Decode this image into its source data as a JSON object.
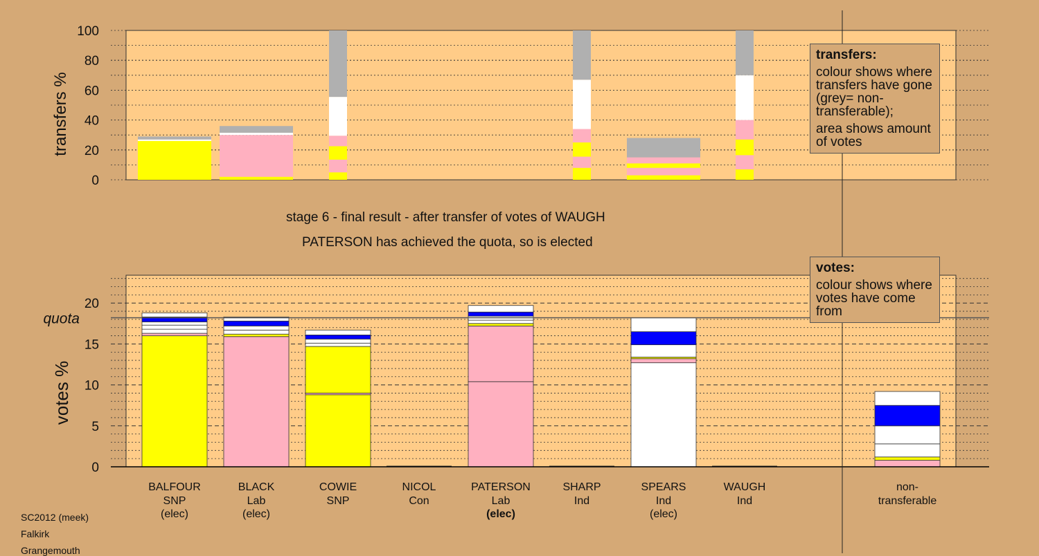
{
  "colors": {
    "SNP": "#ffff00",
    "Lab": "#ffb0c0",
    "Ind": "#ffffff",
    "Con": "#0000ff",
    "nontransferable": "#b0b0b0",
    "panel": "#ffcc88",
    "background": "#d5a976"
  },
  "captions": {
    "stage": "stage 6 - final result - after transfer of votes of WAUGH",
    "elected": "PATERSON has achieved the quota, so is elected"
  },
  "legend_transfers": {
    "title": "transfers:",
    "p1": "colour shows where transfers have gone (grey= non-transferable);",
    "p2": "area shows amount of votes"
  },
  "legend_votes": {
    "title": "votes:",
    "p1": "colour shows where votes have come from"
  },
  "footer": [
    "SC2012 (meek)",
    "Falkirk",
    "Grangemouth"
  ],
  "chart_data": [
    {
      "type": "bar",
      "title": "",
      "ylabel": "transfers %",
      "ylim": [
        0,
        100
      ],
      "yticks": [
        0,
        20,
        40,
        60,
        80,
        100
      ],
      "grid": true,
      "legend": "right",
      "columns": [
        {
          "id": "BALFOUR",
          "segments": [
            {
              "c": "SNP",
              "v": 26
            },
            {
              "c": "Ind",
              "v": 1
            },
            {
              "c": "nontransferable",
              "v": 2
            }
          ]
        },
        {
          "id": "BLACK",
          "segments": [
            {
              "c": "SNP",
              "v": 2
            },
            {
              "c": "Lab",
              "v": 28
            },
            {
              "c": "Ind",
              "v": 1.5
            },
            {
              "c": "nontransferable",
              "v": 4.5
            }
          ]
        },
        {
          "id": "COWIE",
          "narrow": true,
          "segments": [
            {
              "c": "SNP",
              "v": 5
            },
            {
              "c": "Lab",
              "v": 8.5
            },
            {
              "c": "SNP",
              "v": 9
            },
            {
              "c": "Lab",
              "v": 7
            },
            {
              "c": "Ind",
              "v": 26
            },
            {
              "c": "nontransferable",
              "v": 44.5
            }
          ]
        },
        {
          "id": "NICOL",
          "segments": []
        },
        {
          "id": "PATERSON",
          "segments": []
        },
        {
          "id": "SHARP",
          "narrow": true,
          "segments": [
            {
              "c": "SNP",
              "v": 8
            },
            {
              "c": "Lab",
              "v": 7.5
            },
            {
              "c": "SNP",
              "v": 9.5
            },
            {
              "c": "Lab",
              "v": 9
            },
            {
              "c": "Ind",
              "v": 33
            },
            {
              "c": "nontransferable",
              "v": 33
            }
          ]
        },
        {
          "id": "SPEARS",
          "segments": [
            {
              "c": "SNP",
              "v": 3
            },
            {
              "c": "Lab",
              "v": 5
            },
            {
              "c": "SNP",
              "v": 3
            },
            {
              "c": "Lab",
              "v": 4
            },
            {
              "c": "nontransferable",
              "v": 13
            }
          ]
        },
        {
          "id": "WAUGH",
          "narrow": true,
          "segments": [
            {
              "c": "SNP",
              "v": 7
            },
            {
              "c": "Lab",
              "v": 9.5
            },
            {
              "c": "SNP",
              "v": 10.5
            },
            {
              "c": "Lab",
              "v": 13
            },
            {
              "c": "Ind",
              "v": 30
            },
            {
              "c": "nontransferable",
              "v": 30
            }
          ]
        }
      ]
    },
    {
      "type": "bar",
      "title": "",
      "ylabel": "votes %",
      "ylim": [
        0,
        23.5
      ],
      "yticks": [
        0,
        5,
        10,
        15,
        20
      ],
      "quota": 18.2,
      "quota_label": "quota",
      "grid": true,
      "legend": "right",
      "candidates": [
        {
          "name": "BALFOUR",
          "party": "SNP",
          "status": "(elec)",
          "bold": false,
          "segments": [
            {
              "c": "SNP",
              "v": 16
            },
            {
              "c": "Lab",
              "v": 0.3
            },
            {
              "c": "Ind",
              "v": 0.5
            },
            {
              "c": "Ind",
              "v": 0.5
            },
            {
              "c": "Ind",
              "v": 0.4
            },
            {
              "c": "Con",
              "v": 0.6
            },
            {
              "c": "Ind",
              "v": 0.5
            }
          ]
        },
        {
          "name": "BLACK",
          "party": "Lab",
          "status": "(elec)",
          "bold": false,
          "segments": [
            {
              "c": "Lab",
              "v": 15.9
            },
            {
              "c": "SNP",
              "v": 0.3
            },
            {
              "c": "Ind",
              "v": 0.5
            },
            {
              "c": "Ind",
              "v": 0.5
            },
            {
              "c": "Con",
              "v": 0.6
            },
            {
              "c": "Ind",
              "v": 0.5
            }
          ]
        },
        {
          "name": "COWIE",
          "party": "SNP",
          "status": "",
          "bold": false,
          "segments": [
            {
              "c": "SNP",
              "v": 8.8
            },
            {
              "c": "Lab",
              "v": 0.2
            },
            {
              "c": "SNP",
              "v": 5.7
            },
            {
              "c": "Ind",
              "v": 0.4
            },
            {
              "c": "Ind",
              "v": 0.5
            },
            {
              "c": "Con",
              "v": 0.5
            },
            {
              "c": "Ind",
              "v": 0.6
            }
          ]
        },
        {
          "name": "NICOL",
          "party": "Con",
          "status": "",
          "bold": false,
          "segments": []
        },
        {
          "name": "PATERSON",
          "party": "Lab",
          "status": "(elec)",
          "bold": true,
          "segments": [
            {
              "c": "Lab",
              "v": 10.4
            },
            {
              "c": "Lab",
              "v": 6.8
            },
            {
              "c": "SNP",
              "v": 0.3
            },
            {
              "c": "Ind",
              "v": 0.4
            },
            {
              "c": "Ind",
              "v": 0.5
            },
            {
              "c": "Con",
              "v": 0.5
            },
            {
              "c": "Ind",
              "v": 0.8
            }
          ]
        },
        {
          "name": "SHARP",
          "party": "Ind",
          "status": "",
          "bold": false,
          "segments": []
        },
        {
          "name": "SPEARS",
          "party": "Ind",
          "status": "(elec)",
          "bold": false,
          "segments": [
            {
              "c": "Ind",
              "v": 12.7
            },
            {
              "c": "Lab",
              "v": 0.5
            },
            {
              "c": "SNP",
              "v": 0.2
            },
            {
              "c": "Ind",
              "v": 1.5
            },
            {
              "c": "Con",
              "v": 1.6
            },
            {
              "c": "Ind",
              "v": 1.7
            }
          ]
        },
        {
          "name": "WAUGH",
          "party": "Ind",
          "status": "",
          "bold": false,
          "segments": []
        },
        {
          "name": "non-",
          "party": "transferable",
          "status": "",
          "bold": false,
          "segments": [
            {
              "c": "Lab",
              "v": 0.8
            },
            {
              "c": "SNP",
              "v": 0.4
            },
            {
              "c": "Ind",
              "v": 1.6
            },
            {
              "c": "Ind",
              "v": 2.2
            },
            {
              "c": "Con",
              "v": 2.5
            },
            {
              "c": "Ind",
              "v": 1.7
            }
          ]
        }
      ]
    }
  ]
}
